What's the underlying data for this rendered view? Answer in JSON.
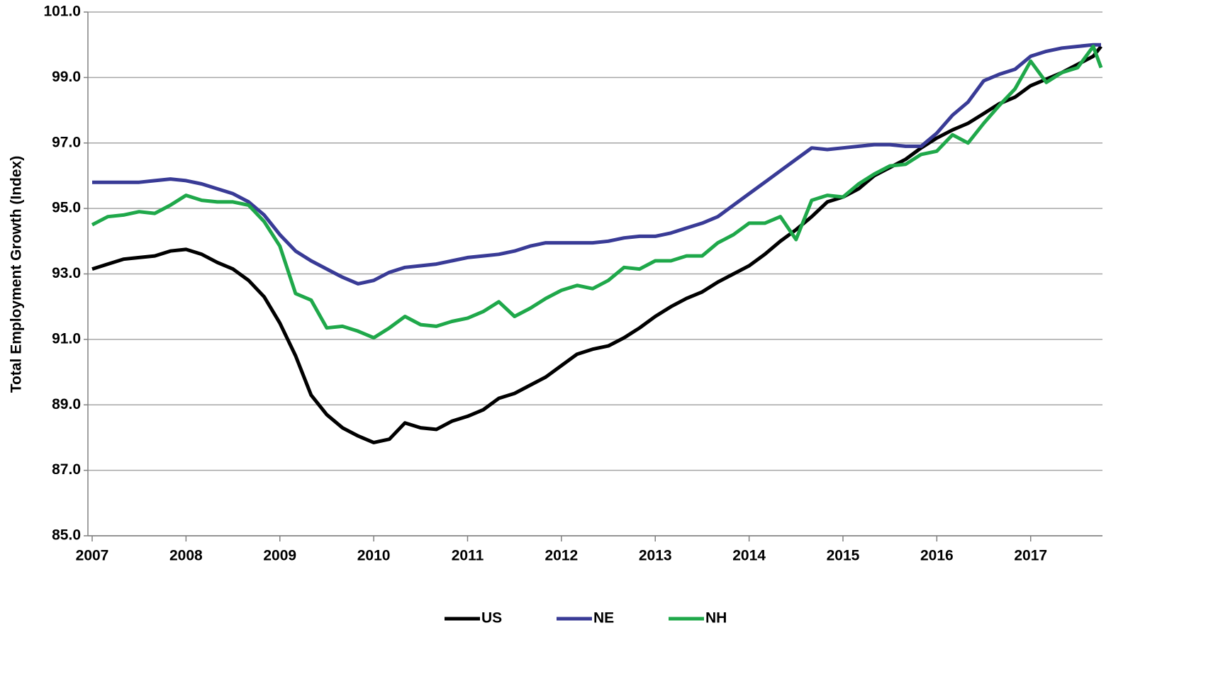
{
  "chart_data": {
    "type": "line",
    "ylabel": "Total Employment Growth (Index)",
    "x": [
      2007,
      2007.167,
      2007.333,
      2007.5,
      2007.667,
      2007.833,
      2008,
      2008.167,
      2008.333,
      2008.5,
      2008.667,
      2008.833,
      2009,
      2009.167,
      2009.333,
      2009.5,
      2009.667,
      2009.833,
      2010,
      2010.167,
      2010.333,
      2010.5,
      2010.667,
      2010.833,
      2011,
      2011.167,
      2011.333,
      2011.5,
      2011.667,
      2011.833,
      2012,
      2012.167,
      2012.333,
      2012.5,
      2012.667,
      2012.833,
      2013,
      2013.167,
      2013.333,
      2013.5,
      2013.667,
      2013.833,
      2014,
      2014.167,
      2014.333,
      2014.5,
      2014.667,
      2014.833,
      2015,
      2015.167,
      2015.333,
      2015.5,
      2015.667,
      2015.833,
      2016,
      2016.167,
      2016.333,
      2016.5,
      2016.667,
      2016.833,
      2017,
      2017.167,
      2017.333,
      2017.5,
      2017.667,
      2017.75
    ],
    "series": [
      {
        "name": "US",
        "color": "#000000",
        "values": [
          93.15,
          93.3,
          93.45,
          93.5,
          93.55,
          93.7,
          93.75,
          93.6,
          93.35,
          93.15,
          92.8,
          92.3,
          91.5,
          90.5,
          89.3,
          88.7,
          88.3,
          88.05,
          87.85,
          87.95,
          88.45,
          88.3,
          88.25,
          88.5,
          88.65,
          88.85,
          89.2,
          89.35,
          89.6,
          89.85,
          90.2,
          90.55,
          90.7,
          90.8,
          91.05,
          91.35,
          91.7,
          92.0,
          92.25,
          92.45,
          92.75,
          93.0,
          93.25,
          93.6,
          94.0,
          94.35,
          94.75,
          95.2,
          95.35,
          95.6,
          96.0,
          96.25,
          96.5,
          96.85,
          97.15,
          97.4,
          97.6,
          97.9,
          98.2,
          98.4,
          98.75,
          98.95,
          99.15,
          99.4,
          99.65,
          99.95
        ]
      },
      {
        "name": "NE",
        "color": "#393b96",
        "values": [
          95.8,
          95.8,
          95.8,
          95.8,
          95.85,
          95.9,
          95.85,
          95.75,
          95.6,
          95.45,
          95.2,
          94.8,
          94.2,
          93.7,
          93.4,
          93.15,
          92.9,
          92.7,
          92.8,
          93.05,
          93.2,
          93.25,
          93.3,
          93.4,
          93.5,
          93.55,
          93.6,
          93.7,
          93.85,
          93.95,
          93.95,
          93.95,
          93.95,
          94.0,
          94.1,
          94.15,
          94.15,
          94.25,
          94.4,
          94.55,
          94.75,
          95.1,
          95.45,
          95.8,
          96.15,
          96.5,
          96.85,
          96.8,
          96.85,
          96.9,
          96.95,
          96.95,
          96.9,
          96.9,
          97.3,
          97.85,
          98.25,
          98.9,
          99.1,
          99.25,
          99.65,
          99.8,
          99.9,
          99.95,
          100.0,
          100.0
        ]
      },
      {
        "name": "NH",
        "color": "#1fa84a",
        "values": [
          94.5,
          94.75,
          94.8,
          94.9,
          94.85,
          95.1,
          95.4,
          95.25,
          95.2,
          95.2,
          95.1,
          94.6,
          93.85,
          92.4,
          92.2,
          91.35,
          91.4,
          91.25,
          91.05,
          91.35,
          91.7,
          91.45,
          91.4,
          91.55,
          91.65,
          91.85,
          92.15,
          91.7,
          91.95,
          92.25,
          92.5,
          92.65,
          92.55,
          92.8,
          93.2,
          93.15,
          93.4,
          93.4,
          93.55,
          93.55,
          93.95,
          94.2,
          94.55,
          94.55,
          94.75,
          94.05,
          95.25,
          95.4,
          95.35,
          95.75,
          96.05,
          96.3,
          96.35,
          96.65,
          96.75,
          97.25,
          97.0,
          97.6,
          98.15,
          98.65,
          99.5,
          98.85,
          99.15,
          99.3,
          99.95,
          99.3
        ]
      }
    ],
    "xlim": [
      2007,
      2017.75
    ],
    "xticks": [
      2007,
      2008,
      2009,
      2010,
      2011,
      2012,
      2013,
      2014,
      2015,
      2016,
      2017
    ],
    "ylim": [
      85,
      101
    ],
    "yticks": [
      {
        "value": 85,
        "label": "85.0"
      },
      {
        "value": 87,
        "label": "87.0"
      },
      {
        "value": 89,
        "label": "89.0"
      },
      {
        "value": 91,
        "label": "91.0"
      },
      {
        "value": 93,
        "label": "93.0"
      },
      {
        "value": 95,
        "label": "95.0"
      },
      {
        "value": 97,
        "label": "97.0"
      },
      {
        "value": 99,
        "label": "99.0"
      },
      {
        "value": 101,
        "label": "101.0"
      }
    ],
    "grid": true,
    "legend": "bottom"
  }
}
